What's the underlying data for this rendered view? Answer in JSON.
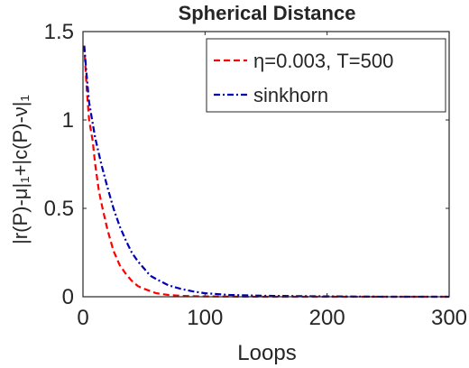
{
  "chart_data": {
    "type": "line",
    "title": "Spherical Distance",
    "xlabel": "Loops",
    "ylabel": "|r(P)-μ|₁+|c(P)-ν|₁",
    "xlim": [
      0,
      300
    ],
    "ylim": [
      0,
      1.5
    ],
    "xticks": [
      0,
      100,
      200,
      300
    ],
    "yticks": [
      0,
      0.5,
      1,
      1.5
    ],
    "xtick_labels": [
      "0",
      "100",
      "200",
      "300"
    ],
    "ytick_labels": [
      "0",
      "0.5",
      "1",
      "1.5"
    ],
    "grid": false,
    "legend_position": "top-right",
    "series": [
      {
        "name": "η=0.003, T=500",
        "color": "#ff0000",
        "style": "dashed",
        "x": [
          1,
          3,
          5,
          8,
          10,
          13,
          16,
          20,
          25,
          30,
          35,
          40,
          45,
          50,
          60,
          70,
          80,
          100,
          120,
          150,
          200,
          250,
          300
        ],
        "y": [
          1.42,
          1.18,
          1.0,
          0.88,
          0.75,
          0.6,
          0.5,
          0.38,
          0.26,
          0.18,
          0.13,
          0.09,
          0.06,
          0.045,
          0.02,
          0.01,
          0.005,
          0.002,
          0.001,
          0.0,
          0.0,
          0.0,
          0.0
        ]
      },
      {
        "name": "sinkhorn",
        "color": "#0000b4",
        "style": "dashdot",
        "x": [
          1,
          3,
          5,
          8,
          10,
          15,
          20,
          25,
          30,
          35,
          40,
          45,
          50,
          55,
          60,
          70,
          80,
          90,
          100,
          120,
          150,
          200,
          250,
          300
        ],
        "y": [
          1.42,
          1.25,
          1.1,
          0.98,
          0.9,
          0.75,
          0.62,
          0.5,
          0.4,
          0.32,
          0.25,
          0.2,
          0.16,
          0.12,
          0.1,
          0.065,
          0.045,
          0.03,
          0.02,
          0.01,
          0.005,
          0.002,
          0.0,
          0.0
        ]
      }
    ]
  }
}
